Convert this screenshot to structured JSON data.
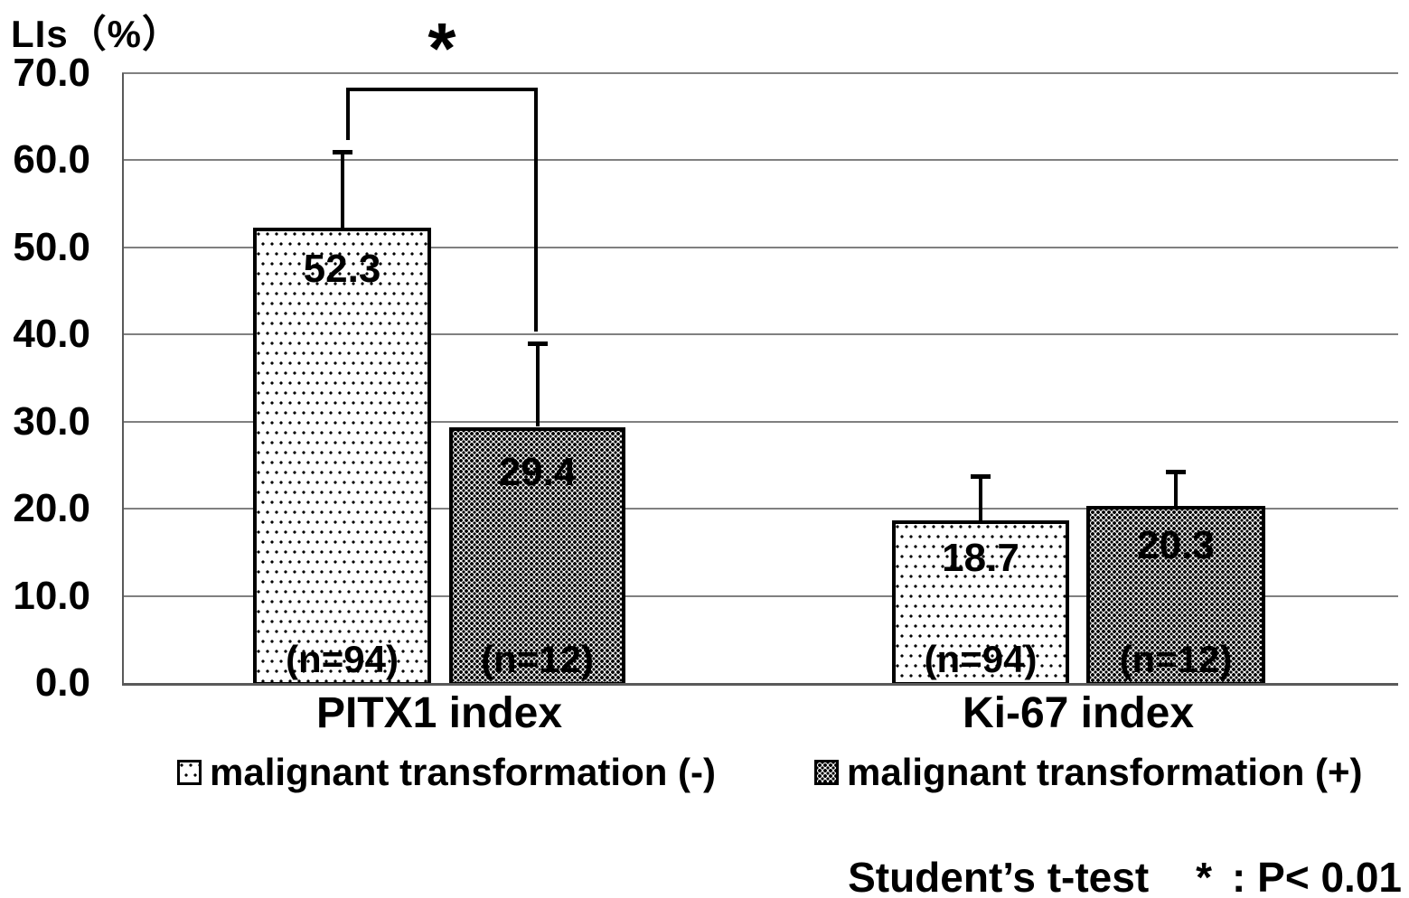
{
  "axis_title": "LIs（%）",
  "chart_data": {
    "type": "bar",
    "title": "LIs（%）",
    "ylabel": "LIs (%)",
    "ylim": [
      0,
      70
    ],
    "ytick_step": 10,
    "ytick_labels": [
      "70.0",
      "60.0",
      "50.0",
      "40.0",
      "30.0",
      "20.0",
      "10.0",
      "0.0"
    ],
    "grid": "horizontal",
    "legend_position": "bottom",
    "categories": [
      "PITX1 index",
      "Ki-67 index"
    ],
    "series": [
      {
        "name": "malignant transformation (-)",
        "pattern": "sparse-dots",
        "values": [
          52.3,
          18.7
        ],
        "error_upper": [
          8.7,
          5.1
        ],
        "n_labels": [
          "(n=94)",
          "(n=94)"
        ]
      },
      {
        "name": "malignant transformation (+)",
        "pattern": "dense-dots",
        "values": [
          29.4,
          20.3
        ],
        "error_upper": [
          9.6,
          4.0
        ],
        "n_labels": [
          "(n=12)",
          "(n=12)"
        ]
      }
    ],
    "value_labels": [
      "52.3",
      "29.4",
      "18.7",
      "20.3"
    ],
    "significance": {
      "symbol": "*",
      "between": [
        "PITX1 index malignant transformation (-)",
        "PITX1 index malignant transformation (+)"
      ]
    }
  },
  "footnote": {
    "test": "Student’s t-test",
    "symbol": "*",
    "meaning": ": P< 0.01"
  }
}
